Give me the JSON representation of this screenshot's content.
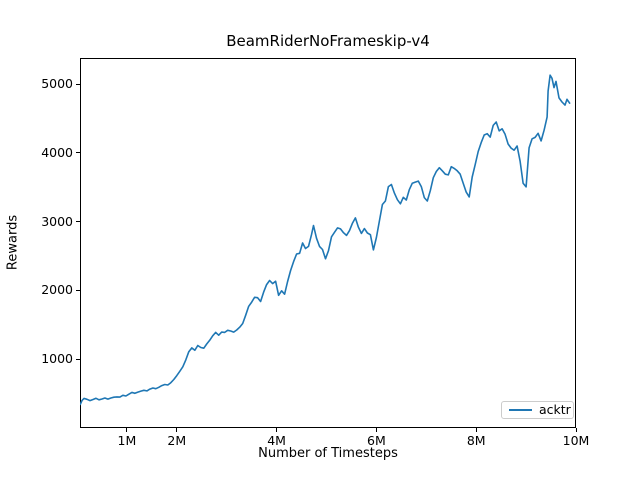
{
  "chart_data": {
    "type": "line",
    "title": "BeamRiderNoFrameskip-v4",
    "xlabel": "Number of Timesteps",
    "ylabel": "Rewards",
    "grid": false,
    "legend_position": "lower right",
    "xlim": [
      0.06,
      10.0
    ],
    "ylim": [
      0,
      5380
    ],
    "x_unit": "millions of timesteps",
    "x_ticks": [
      {
        "value": 1,
        "label": "1M"
      },
      {
        "value": 2,
        "label": "2M"
      },
      {
        "value": 4,
        "label": "4M"
      },
      {
        "value": 6,
        "label": "6M"
      },
      {
        "value": 8,
        "label": "8M"
      },
      {
        "value": 10,
        "label": "10M"
      }
    ],
    "y_ticks": [
      {
        "value": 1000,
        "label": "1000"
      },
      {
        "value": 2000,
        "label": "2000"
      },
      {
        "value": 3000,
        "label": "3000"
      },
      {
        "value": 4000,
        "label": "4000"
      },
      {
        "value": 5000,
        "label": "5000"
      }
    ],
    "series": [
      {
        "name": "acktr",
        "color": "#1f77b4",
        "points": [
          [
            0.06,
            335
          ],
          [
            0.1,
            400
          ],
          [
            0.14,
            430
          ],
          [
            0.2,
            418
          ],
          [
            0.26,
            398
          ],
          [
            0.32,
            415
          ],
          [
            0.38,
            432
          ],
          [
            0.44,
            410
          ],
          [
            0.5,
            422
          ],
          [
            0.56,
            436
          ],
          [
            0.62,
            420
          ],
          [
            0.68,
            436
          ],
          [
            0.74,
            448
          ],
          [
            0.8,
            452
          ],
          [
            0.86,
            450
          ],
          [
            0.92,
            476
          ],
          [
            0.98,
            466
          ],
          [
            1.04,
            492
          ],
          [
            1.1,
            518
          ],
          [
            1.16,
            505
          ],
          [
            1.22,
            522
          ],
          [
            1.28,
            536
          ],
          [
            1.34,
            548
          ],
          [
            1.4,
            540
          ],
          [
            1.46,
            565
          ],
          [
            1.52,
            582
          ],
          [
            1.58,
            572
          ],
          [
            1.64,
            592
          ],
          [
            1.7,
            616
          ],
          [
            1.76,
            632
          ],
          [
            1.82,
            625
          ],
          [
            1.88,
            658
          ],
          [
            1.94,
            705
          ],
          [
            2.0,
            762
          ],
          [
            2.06,
            825
          ],
          [
            2.12,
            890
          ],
          [
            2.18,
            990
          ],
          [
            2.24,
            1110
          ],
          [
            2.3,
            1165
          ],
          [
            2.36,
            1130
          ],
          [
            2.42,
            1200
          ],
          [
            2.48,
            1170
          ],
          [
            2.54,
            1160
          ],
          [
            2.6,
            1222
          ],
          [
            2.66,
            1275
          ],
          [
            2.72,
            1340
          ],
          [
            2.78,
            1390
          ],
          [
            2.84,
            1350
          ],
          [
            2.9,
            1395
          ],
          [
            2.96,
            1390
          ],
          [
            3.02,
            1420
          ],
          [
            3.08,
            1410
          ],
          [
            3.14,
            1395
          ],
          [
            3.2,
            1425
          ],
          [
            3.26,
            1465
          ],
          [
            3.32,
            1520
          ],
          [
            3.38,
            1640
          ],
          [
            3.44,
            1770
          ],
          [
            3.5,
            1830
          ],
          [
            3.56,
            1900
          ],
          [
            3.62,
            1895
          ],
          [
            3.68,
            1840
          ],
          [
            3.74,
            1975
          ],
          [
            3.8,
            2085
          ],
          [
            3.86,
            2145
          ],
          [
            3.92,
            2100
          ],
          [
            3.98,
            2135
          ],
          [
            4.04,
            1930
          ],
          [
            4.1,
            1995
          ],
          [
            4.16,
            1945
          ],
          [
            4.22,
            2130
          ],
          [
            4.28,
            2290
          ],
          [
            4.34,
            2420
          ],
          [
            4.4,
            2530
          ],
          [
            4.46,
            2540
          ],
          [
            4.52,
            2690
          ],
          [
            4.58,
            2610
          ],
          [
            4.64,
            2640
          ],
          [
            4.7,
            2810
          ],
          [
            4.74,
            2945
          ],
          [
            4.8,
            2760
          ],
          [
            4.86,
            2640
          ],
          [
            4.92,
            2595
          ],
          [
            4.98,
            2460
          ],
          [
            5.04,
            2580
          ],
          [
            5.1,
            2780
          ],
          [
            5.16,
            2845
          ],
          [
            5.22,
            2910
          ],
          [
            5.28,
            2895
          ],
          [
            5.34,
            2840
          ],
          [
            5.4,
            2800
          ],
          [
            5.46,
            2870
          ],
          [
            5.52,
            2980
          ],
          [
            5.58,
            3055
          ],
          [
            5.64,
            2920
          ],
          [
            5.7,
            2830
          ],
          [
            5.76,
            2900
          ],
          [
            5.82,
            2835
          ],
          [
            5.88,
            2810
          ],
          [
            5.94,
            2590
          ],
          [
            6.0,
            2770
          ],
          [
            6.06,
            3010
          ],
          [
            6.12,
            3250
          ],
          [
            6.18,
            3300
          ],
          [
            6.24,
            3510
          ],
          [
            6.3,
            3540
          ],
          [
            6.36,
            3415
          ],
          [
            6.42,
            3320
          ],
          [
            6.48,
            3260
          ],
          [
            6.54,
            3355
          ],
          [
            6.6,
            3315
          ],
          [
            6.66,
            3465
          ],
          [
            6.72,
            3560
          ],
          [
            6.78,
            3575
          ],
          [
            6.84,
            3590
          ],
          [
            6.9,
            3510
          ],
          [
            6.96,
            3350
          ],
          [
            7.02,
            3300
          ],
          [
            7.08,
            3450
          ],
          [
            7.14,
            3640
          ],
          [
            7.2,
            3730
          ],
          [
            7.26,
            3785
          ],
          [
            7.32,
            3740
          ],
          [
            7.38,
            3690
          ],
          [
            7.44,
            3680
          ],
          [
            7.5,
            3800
          ],
          [
            7.56,
            3775
          ],
          [
            7.62,
            3740
          ],
          [
            7.68,
            3690
          ],
          [
            7.74,
            3560
          ],
          [
            7.8,
            3430
          ],
          [
            7.86,
            3360
          ],
          [
            7.92,
            3650
          ],
          [
            7.98,
            3830
          ],
          [
            8.04,
            4020
          ],
          [
            8.1,
            4150
          ],
          [
            8.16,
            4260
          ],
          [
            8.22,
            4280
          ],
          [
            8.28,
            4230
          ],
          [
            8.34,
            4400
          ],
          [
            8.4,
            4450
          ],
          [
            8.46,
            4320
          ],
          [
            8.52,
            4350
          ],
          [
            8.58,
            4270
          ],
          [
            8.64,
            4130
          ],
          [
            8.7,
            4070
          ],
          [
            8.76,
            4040
          ],
          [
            8.82,
            4100
          ],
          [
            8.88,
            3880
          ],
          [
            8.94,
            3560
          ],
          [
            9.0,
            3505
          ],
          [
            9.06,
            4075
          ],
          [
            9.12,
            4205
          ],
          [
            9.18,
            4225
          ],
          [
            9.24,
            4285
          ],
          [
            9.3,
            4175
          ],
          [
            9.36,
            4330
          ],
          [
            9.42,
            4520
          ],
          [
            9.44,
            4900
          ],
          [
            9.48,
            5130
          ],
          [
            9.52,
            5085
          ],
          [
            9.56,
            4950
          ],
          [
            9.6,
            5040
          ],
          [
            9.66,
            4800
          ],
          [
            9.72,
            4740
          ],
          [
            9.78,
            4695
          ],
          [
            9.82,
            4780
          ],
          [
            9.88,
            4715
          ]
        ]
      }
    ]
  }
}
